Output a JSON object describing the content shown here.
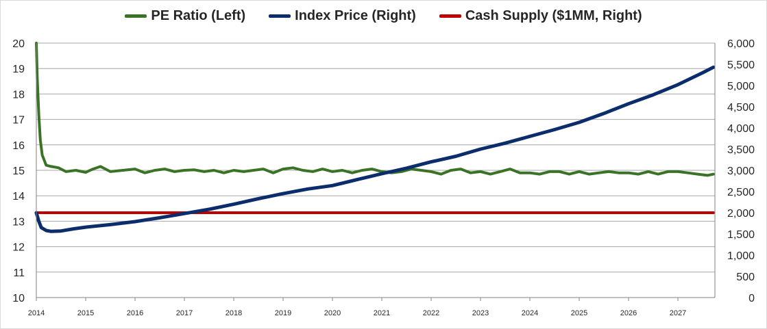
{
  "chart_data": {
    "type": "line",
    "title": "",
    "xlabel": "",
    "ylabel_left": "",
    "ylabel_right": "",
    "x_tick_labels": [
      "2014",
      "2015",
      "2016",
      "2017",
      "2018",
      "2019",
      "2020",
      "2021",
      "2022",
      "2023",
      "2024",
      "2025",
      "2026",
      "2027"
    ],
    "xlim": [
      2014.0,
      2027.75
    ],
    "ylim_left": [
      10,
      20
    ],
    "ylim_right": [
      0,
      6000
    ],
    "left_ticks": [
      "10",
      "11",
      "12",
      "13",
      "14",
      "15",
      "16",
      "17",
      "18",
      "19",
      "20"
    ],
    "right_ticks": [
      "0",
      "500",
      "1,000",
      "1,500",
      "2,000",
      "2,500",
      "3,000",
      "3,500",
      "4,000",
      "4,500",
      "5,000",
      "5,500",
      "6,000"
    ],
    "grid": true,
    "legend_position": "top-center",
    "series": [
      {
        "name": "PE Ratio (Left)",
        "axis": "left",
        "color": "#3a7326",
        "x": [
          2014.0,
          2014.02,
          2014.05,
          2014.08,
          2014.12,
          2014.2,
          2014.3,
          2014.45,
          2014.6,
          2014.8,
          2015.0,
          2015.15,
          2015.3,
          2015.5,
          2015.75,
          2016.0,
          2016.2,
          2016.4,
          2016.6,
          2016.8,
          2017.0,
          2017.2,
          2017.4,
          2017.6,
          2017.8,
          2018.0,
          2018.2,
          2018.4,
          2018.6,
          2018.8,
          2019.0,
          2019.2,
          2019.4,
          2019.6,
          2019.8,
          2020.0,
          2020.2,
          2020.4,
          2020.6,
          2020.8,
          2021.0,
          2021.2,
          2021.4,
          2021.6,
          2021.8,
          2022.0,
          2022.2,
          2022.4,
          2022.6,
          2022.8,
          2023.0,
          2023.2,
          2023.4,
          2023.6,
          2023.8,
          2024.0,
          2024.2,
          2024.4,
          2024.6,
          2024.8,
          2025.0,
          2025.2,
          2025.4,
          2025.6,
          2025.8,
          2026.0,
          2026.2,
          2026.4,
          2026.6,
          2026.8,
          2027.0,
          2027.2,
          2027.4,
          2027.6,
          2027.72
        ],
        "values": [
          20.0,
          18.6,
          17.2,
          16.2,
          15.6,
          15.2,
          15.15,
          15.1,
          14.95,
          15.0,
          14.92,
          15.05,
          15.15,
          14.95,
          15.0,
          15.05,
          14.9,
          15.0,
          15.05,
          14.95,
          15.0,
          15.02,
          14.95,
          15.0,
          14.9,
          15.0,
          14.95,
          15.0,
          15.05,
          14.9,
          15.05,
          15.1,
          15.0,
          14.95,
          15.05,
          14.95,
          15.0,
          14.9,
          15.0,
          15.05,
          14.95,
          14.9,
          14.95,
          15.05,
          15.0,
          14.95,
          14.85,
          15.0,
          15.05,
          14.9,
          14.95,
          14.85,
          14.95,
          15.05,
          14.9,
          14.9,
          14.85,
          14.95,
          14.95,
          14.85,
          14.95,
          14.85,
          14.9,
          14.95,
          14.9,
          14.9,
          14.85,
          14.95,
          14.85,
          14.95,
          14.95,
          14.9,
          14.85,
          14.8,
          14.85
        ]
      },
      {
        "name": "Index Price (Right)",
        "axis": "right",
        "color": "#0c2d6b",
        "x": [
          2014.0,
          2014.05,
          2014.1,
          2014.2,
          2014.3,
          2014.5,
          2014.75,
          2015.0,
          2015.5,
          2016.0,
          2016.5,
          2017.0,
          2017.5,
          2018.0,
          2018.5,
          2019.0,
          2019.5,
          2020.0,
          2020.5,
          2021.0,
          2021.5,
          2022.0,
          2022.5,
          2023.0,
          2023.5,
          2024.0,
          2024.5,
          2025.0,
          2025.5,
          2026.0,
          2026.5,
          2027.0,
          2027.5,
          2027.72
        ],
        "values": [
          2000,
          1800,
          1650,
          1580,
          1560,
          1570,
          1620,
          1660,
          1720,
          1790,
          1880,
          1980,
          2080,
          2200,
          2330,
          2450,
          2560,
          2640,
          2780,
          2920,
          3050,
          3200,
          3330,
          3500,
          3640,
          3800,
          3960,
          4130,
          4340,
          4570,
          4780,
          5020,
          5300,
          5430
        ]
      },
      {
        "name": "Cash Supply ($1MM, Right)",
        "axis": "right",
        "color": "#c00000",
        "x": [
          2014.0,
          2027.72
        ],
        "values": [
          2000,
          2000
        ]
      }
    ]
  }
}
